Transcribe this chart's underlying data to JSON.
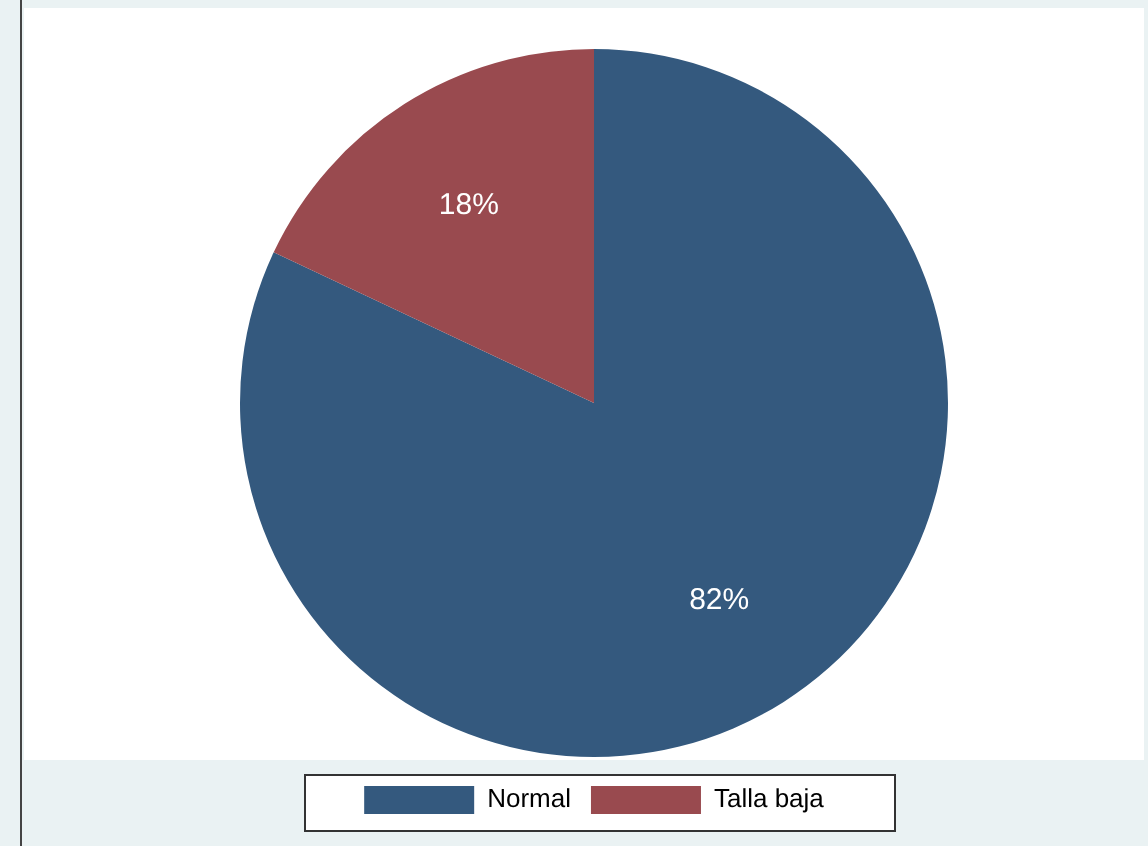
{
  "chart_data": {
    "type": "pie",
    "categories": [
      "Normal",
      "Talla baja"
    ],
    "values": [
      82,
      18
    ],
    "colors": [
      "#34597e",
      "#994a4f"
    ],
    "value_labels": [
      "82%",
      "18%"
    ],
    "legend": "bottom"
  }
}
